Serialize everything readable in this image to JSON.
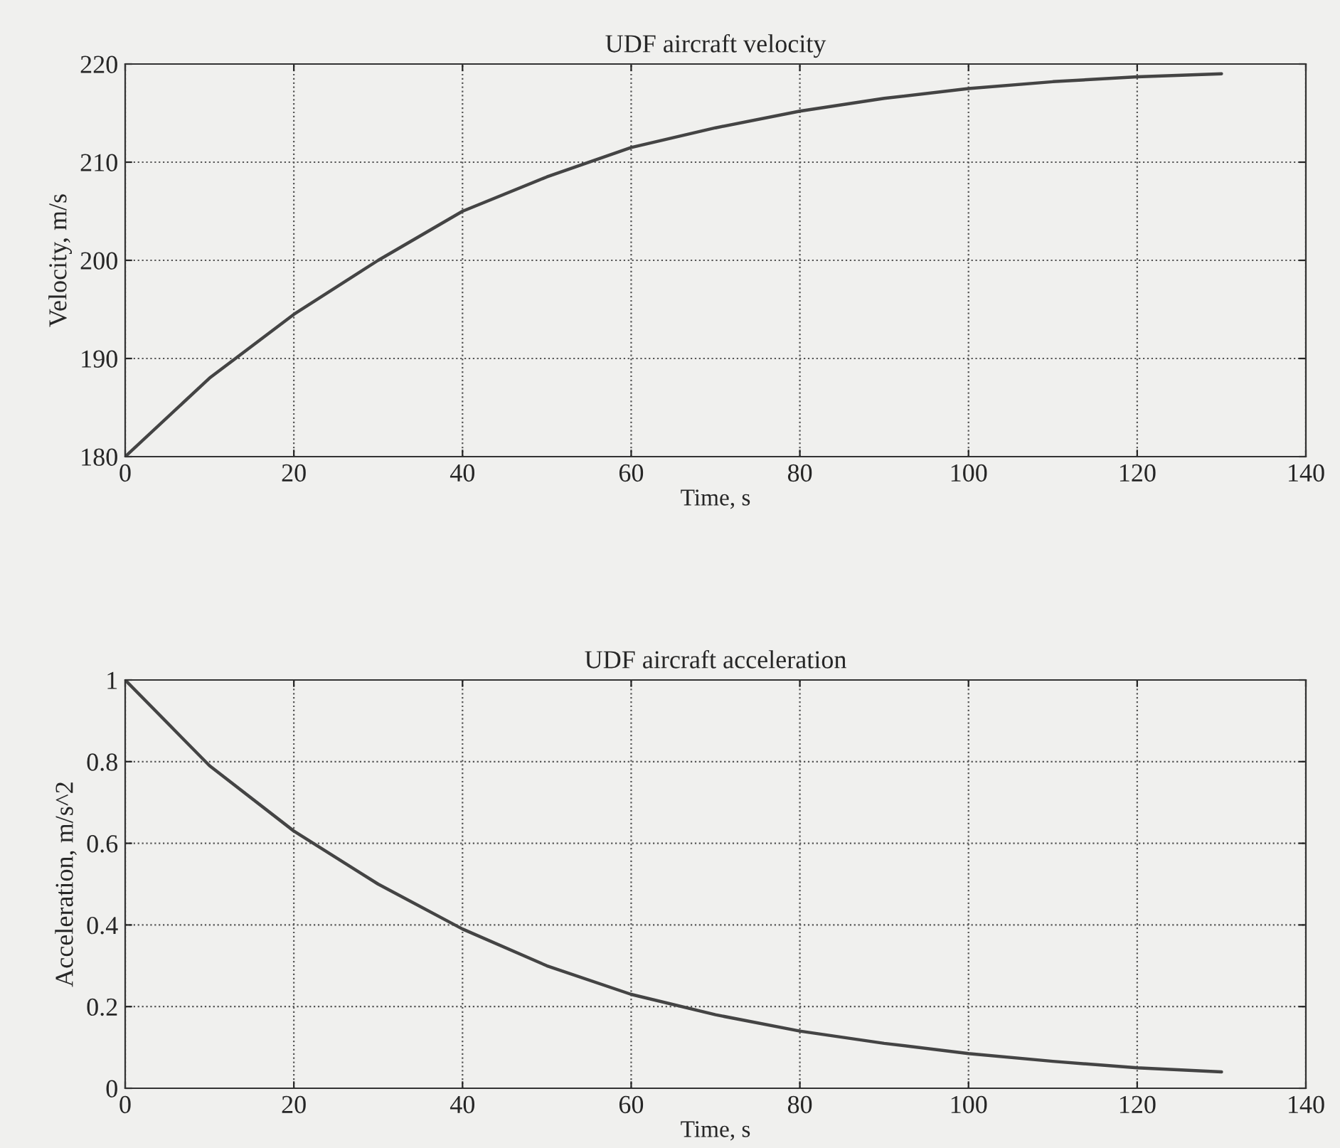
{
  "chart_data": [
    {
      "type": "line",
      "title": "UDF aircraft velocity",
      "xlabel": "Time, s",
      "ylabel": "Velocity, m/s",
      "x": [
        0,
        10,
        20,
        30,
        40,
        50,
        60,
        70,
        80,
        90,
        100,
        110,
        120,
        130
      ],
      "series": [
        {
          "color": "#444444",
          "values": [
            180,
            188,
            194.5,
            200,
            205,
            208.5,
            211.5,
            213.5,
            215.2,
            216.5,
            217.5,
            218.2,
            218.7,
            219
          ]
        }
      ],
      "xlim": [
        0,
        140
      ],
      "xticks": [
        0,
        20,
        40,
        60,
        80,
        100,
        120,
        140
      ],
      "ylim": [
        180,
        220
      ],
      "yticks": [
        180,
        190,
        200,
        210,
        220
      ],
      "grid": true
    },
    {
      "type": "line",
      "title": "UDF aircraft acceleration",
      "xlabel": "Time, s",
      "ylabel": "Acceleration, m/s^2",
      "x": [
        0,
        10,
        20,
        30,
        40,
        50,
        60,
        70,
        80,
        90,
        100,
        110,
        120,
        130
      ],
      "series": [
        {
          "color": "#444444",
          "values": [
            1,
            0.79,
            0.63,
            0.5,
            0.39,
            0.3,
            0.23,
            0.18,
            0.14,
            0.11,
            0.085,
            0.066,
            0.05,
            0.04
          ]
        }
      ],
      "xlim": [
        0,
        140
      ],
      "xticks": [
        0,
        20,
        40,
        60,
        80,
        100,
        120,
        140
      ],
      "ylim": [
        0,
        1
      ],
      "yticks": [
        0,
        0.2,
        0.4,
        0.6,
        0.8,
        1
      ],
      "grid": true
    }
  ]
}
